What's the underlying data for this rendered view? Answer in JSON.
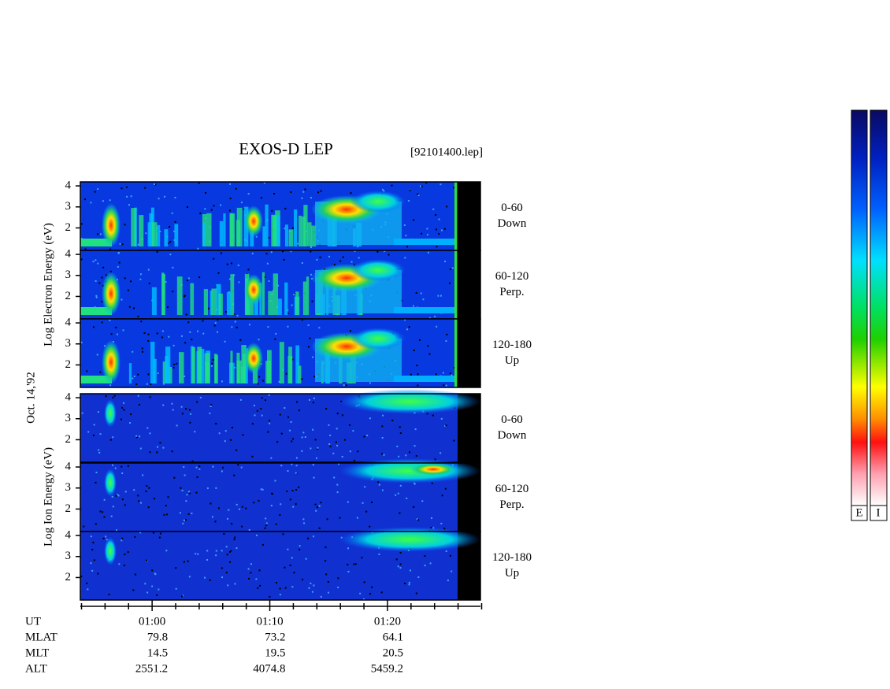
{
  "chart_data": {
    "type": "spectrogram",
    "title": "EXOS-D LEP",
    "file": "[92101400.lep]",
    "date": "Oct. 14,'92",
    "groups": [
      {
        "ylabel": "Log  Electron  Energy (eV)",
        "panels": [
          {
            "pitch": "0-60",
            "direction": "Down"
          },
          {
            "pitch": "60-120",
            "direction": "Perp."
          },
          {
            "pitch": "120-180",
            "direction": "Up"
          }
        ]
      },
      {
        "ylabel": "Log  Ion  Energy (eV)",
        "panels": [
          {
            "pitch": "0-60",
            "direction": "Down"
          },
          {
            "pitch": "60-120",
            "direction": "Perp."
          },
          {
            "pitch": "120-180",
            "direction": "Up"
          }
        ]
      }
    ],
    "ylim": [
      0.93,
      4.19
    ],
    "yticks": [
      2,
      3,
      4
    ],
    "xlim": [
      53.9,
      87.9
    ],
    "xticks": [
      {
        "value": 60,
        "label": "01:00"
      },
      {
        "value": 70,
        "label": "01:10"
      },
      {
        "value": 80,
        "label": "01:20"
      }
    ],
    "minor_xticks": [
      54,
      56,
      58,
      62,
      64,
      66,
      68,
      72,
      74,
      76,
      78,
      82,
      84,
      86,
      88
    ],
    "ephemeris": [
      {
        "name": "UT"
      },
      {
        "name": "MLAT",
        "values": [
          79.8,
          73.2,
          64.1
        ]
      },
      {
        "name": "MLT",
        "values": [
          14.5,
          19.5,
          20.5
        ]
      },
      {
        "name": "ALT",
        "values": [
          2551.2,
          4074.8,
          5459.2
        ]
      }
    ],
    "colorbar_labels": [
      "E",
      "I"
    ]
  }
}
